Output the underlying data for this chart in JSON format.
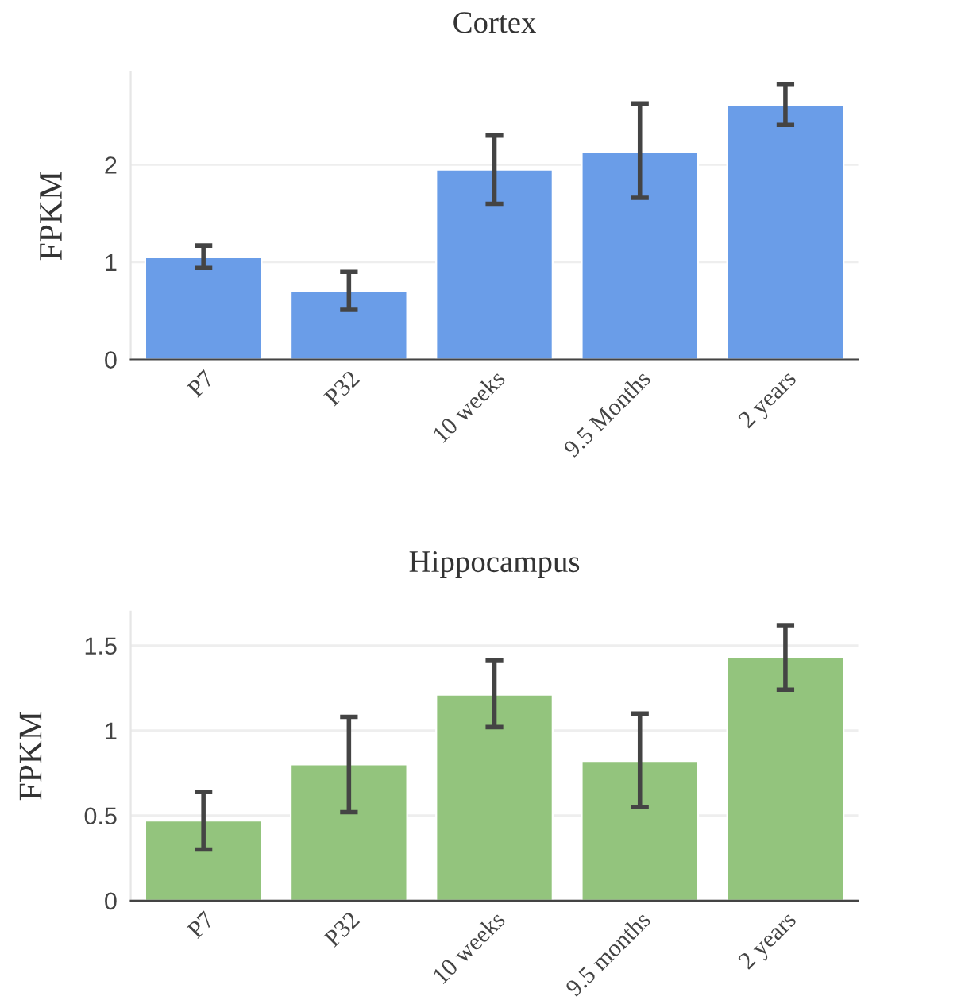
{
  "chart_data": [
    {
      "type": "bar",
      "title": "Cortex",
      "ylabel": "FPKM",
      "categories": [
        "P7",
        "P32",
        "10 weeks",
        "9.5 Months",
        "2 years"
      ],
      "values": [
        1.05,
        0.7,
        1.95,
        2.13,
        2.61
      ],
      "errors": [
        [
          0.94,
          1.17
        ],
        [
          0.51,
          0.9
        ],
        [
          1.6,
          2.3
        ],
        [
          1.66,
          2.63
        ],
        [
          2.41,
          2.83
        ]
      ],
      "color": "#6a9de8",
      "ylim": [
        0,
        2.95
      ],
      "yticks": [
        0,
        1,
        2
      ],
      "grid": "y"
    },
    {
      "type": "bar",
      "title": "Hippocampus",
      "ylabel": "FPKM",
      "categories": [
        "P7",
        "P32",
        "10 weeks",
        "9.5 months",
        "2 years"
      ],
      "values": [
        0.47,
        0.8,
        1.21,
        0.82,
        1.43
      ],
      "errors": [
        [
          0.3,
          0.64
        ],
        [
          0.52,
          1.08
        ],
        [
          1.02,
          1.41
        ],
        [
          0.55,
          1.1
        ],
        [
          1.24,
          1.62
        ]
      ],
      "color": "#93c47d",
      "ylim": [
        0,
        1.7
      ],
      "yticks": [
        0,
        0.5,
        1,
        1.5
      ],
      "grid": "y"
    }
  ]
}
